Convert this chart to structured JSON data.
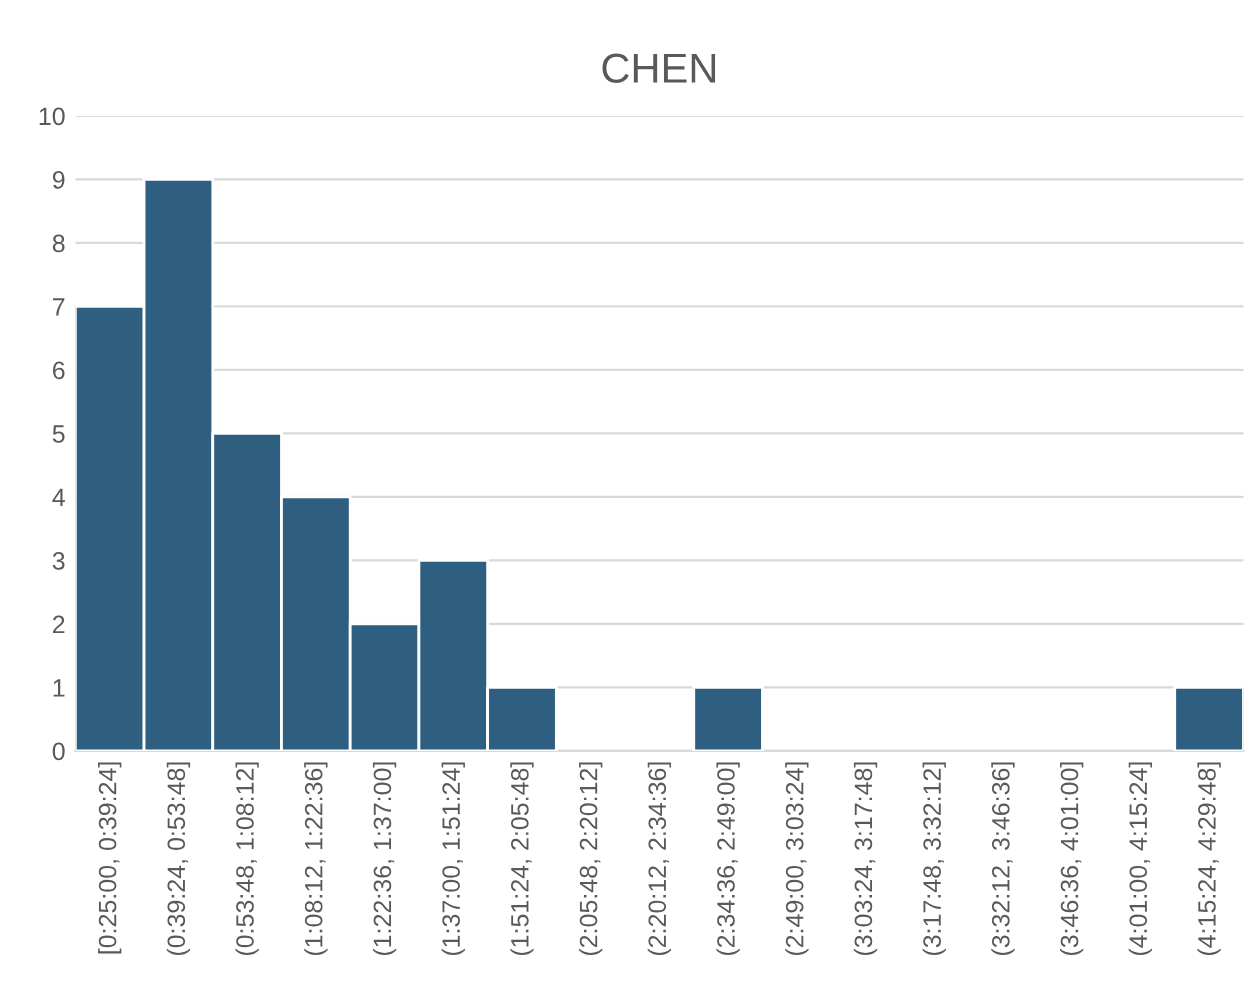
{
  "chart_data": {
    "type": "bar",
    "title": "CHEN",
    "categories": [
      "[0:25:00, 0:39:24]",
      "(0:39:24, 0:53:48]",
      "(0:53:48, 1:08:12]",
      "(1:08:12, 1:22:36]",
      "(1:22:36, 1:37:00]",
      "(1:37:00, 1:51:24]",
      "(1:51:24, 2:05:48]",
      "(2:05:48, 2:20:12]",
      "(2:20:12, 2:34:36]",
      "(2:34:36, 2:49:00]",
      "(2:49:00, 3:03:24]",
      "(3:03:24, 3:17:48]",
      "(3:17:48, 3:32:12]",
      "(3:32:12, 3:46:36]",
      "(3:46:36, 4:01:00]",
      "(4:01:00, 4:15:24]",
      "(4:15:24, 4:29:48]"
    ],
    "values": [
      7,
      9,
      5,
      4,
      2,
      3,
      1,
      0,
      0,
      1,
      0,
      0,
      0,
      0,
      0,
      0,
      1
    ],
    "color": "#2e5f80",
    "ylim": [
      0,
      10
    ],
    "yticks": [
      0,
      1,
      2,
      3,
      4,
      5,
      6,
      7,
      8,
      9,
      10
    ],
    "grid": "y"
  }
}
